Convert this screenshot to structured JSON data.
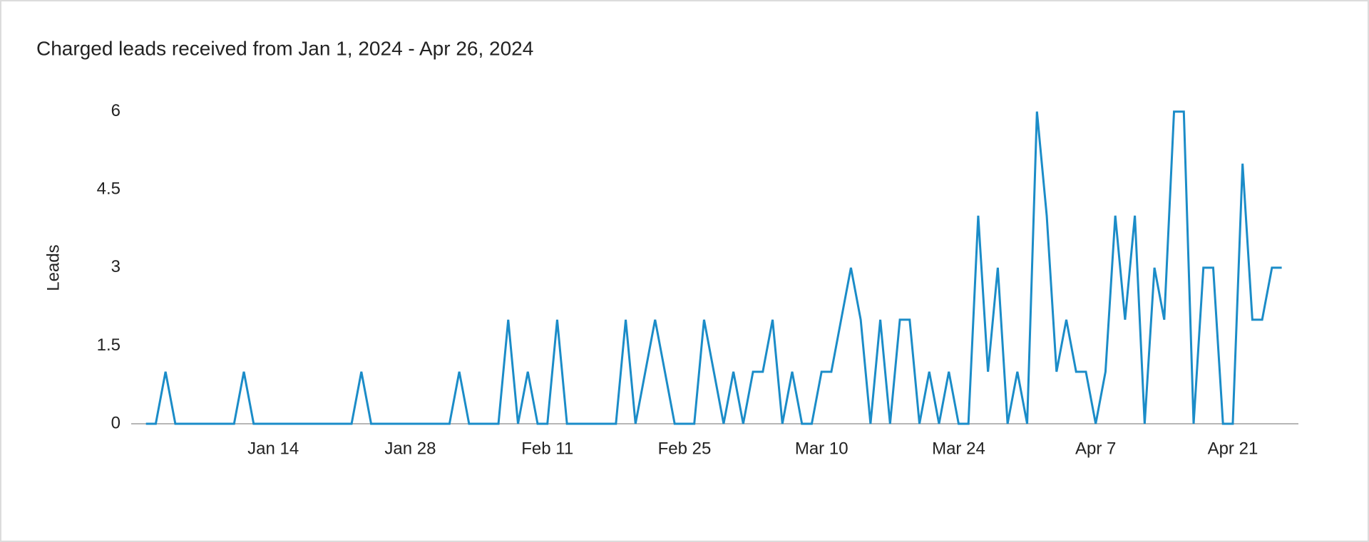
{
  "chart_data": {
    "type": "line",
    "title": "Charged leads received from Jan 1, 2024 - Apr 26, 2024",
    "y_label": "Leads",
    "categories": [
      null,
      null,
      null,
      null,
      null,
      null,
      null,
      null,
      null,
      null,
      null,
      null,
      null,
      "Jan 14",
      null,
      null,
      null,
      null,
      null,
      null,
      null,
      null,
      null,
      null,
      null,
      null,
      null,
      "Jan 28",
      null,
      null,
      null,
      null,
      null,
      null,
      null,
      null,
      null,
      null,
      null,
      null,
      null,
      "Feb 11",
      null,
      null,
      null,
      null,
      null,
      null,
      null,
      null,
      null,
      null,
      null,
      null,
      null,
      "Feb 25",
      null,
      null,
      null,
      null,
      null,
      null,
      null,
      null,
      null,
      null,
      null,
      null,
      null,
      "Mar 10",
      null,
      null,
      null,
      null,
      null,
      null,
      null,
      null,
      null,
      null,
      null,
      null,
      null,
      "Mar 24",
      null,
      null,
      null,
      null,
      null,
      null,
      null,
      null,
      null,
      null,
      null,
      null,
      null,
      "Apr 7",
      null,
      null,
      null,
      null,
      null,
      null,
      null,
      null,
      null,
      null,
      null,
      null,
      null,
      "Apr 21",
      null,
      null,
      null,
      null,
      null
    ],
    "series": [
      {
        "name": "Leads",
        "color": "#1b8cc8",
        "values": [
          0,
          0,
          1,
          0,
          0,
          0,
          0,
          0,
          0,
          0,
          1,
          0,
          0,
          0,
          0,
          0,
          0,
          0,
          0,
          0,
          0,
          0,
          1,
          0,
          0,
          0,
          0,
          0,
          0,
          0,
          0,
          0,
          1,
          0,
          0,
          0,
          0,
          2,
          0,
          1,
          0,
          0,
          2,
          0,
          0,
          0,
          0,
          0,
          0,
          2,
          0,
          1,
          2,
          1,
          0,
          0,
          0,
          2,
          1,
          0,
          1,
          0,
          1,
          1,
          2,
          0,
          1,
          0,
          0,
          1,
          1,
          2,
          3,
          2,
          0,
          2,
          0,
          2,
          2,
          0,
          1,
          0,
          1,
          0,
          0,
          4,
          1,
          3,
          0,
          1,
          0,
          6,
          4,
          1,
          2,
          1,
          1,
          0,
          1,
          4,
          2,
          4,
          0,
          3,
          2,
          6,
          6,
          0,
          3,
          3,
          0,
          0,
          5,
          2,
          2,
          3,
          3
        ]
      }
    ],
    "ylim": [
      0,
      6
    ],
    "yticks": [
      0,
      1.5,
      3,
      4.5,
      6
    ],
    "grid": false
  }
}
